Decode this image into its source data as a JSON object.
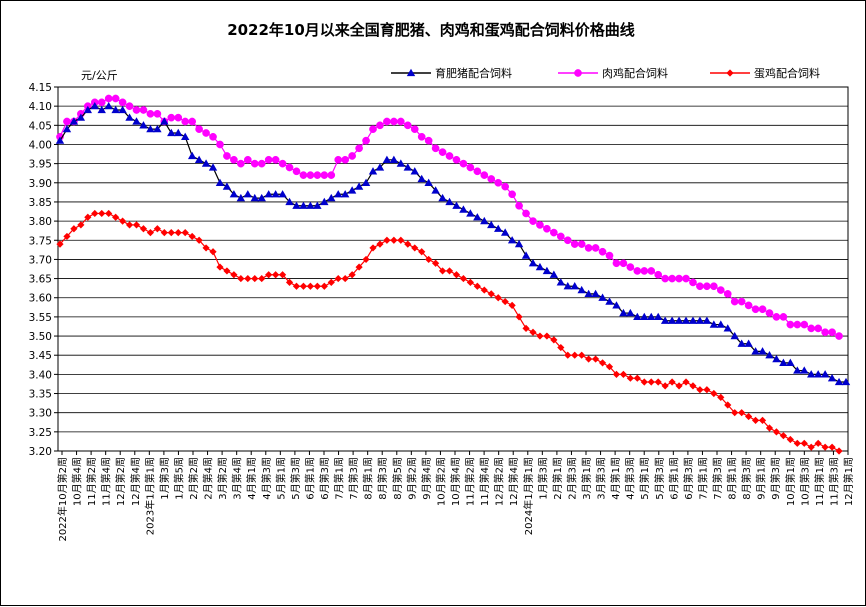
{
  "chart_data": {
    "type": "line",
    "title": "2022年10月以来全国育肥猪、肉鸡和蛋鸡配合饲料价格曲线",
    "ylabel": "元/公斤",
    "ylim": [
      3.2,
      4.15
    ],
    "yticks": [
      "3.20",
      "3.25",
      "3.30",
      "3.35",
      "3.40",
      "3.45",
      "3.50",
      "3.55",
      "3.60",
      "3.65",
      "3.70",
      "3.75",
      "3.80",
      "3.85",
      "3.90",
      "3.95",
      "4.00",
      "4.05",
      "4.10",
      "4.15"
    ],
    "grid": true,
    "legend_position": "top",
    "x_labels": [
      "2022年10月第2周",
      "10月第4周",
      "11月第2周",
      "11月第4周",
      "12月第2周",
      "12月第4周",
      "2023年1月第1周",
      "1月第3周",
      "1月第5周",
      "2月第2周",
      "2月第4周",
      "3月第2周",
      "3月第4周",
      "4月第1周",
      "4月第3周",
      "5月第1周",
      "5月第3周",
      "6月第1周",
      "6月第3周",
      "7月第1周",
      "7月第3周",
      "8月第1周",
      "8月第3周",
      "8月第5周",
      "9月第2周",
      "9月第4周",
      "10月第2周",
      "10月第4周",
      "11月第2周",
      "11月第4周",
      "12月第2周",
      "12月第4周",
      "2024年1月第1周",
      "1月第3周",
      "2月第1周",
      "2月第3周",
      "3月第1周",
      "3月第3周",
      "4月第1周",
      "4月第3周",
      "5月第1周",
      "5月第3周",
      "6月第1周",
      "6月第3周",
      "7月第1周",
      "7月第3周",
      "8月第1周",
      "8月第3周",
      "9月第1周",
      "9月第3周",
      "10月第1周",
      "10月第3周",
      "11月第1周",
      "11月第3周",
      "12月第1周"
    ],
    "series": [
      {
        "name": "育肥猪配合饲料",
        "color": "#0000cc",
        "marker": "triangle",
        "values": [
          4.01,
          4.04,
          4.06,
          4.07,
          4.09,
          4.1,
          4.09,
          4.1,
          4.09,
          4.09,
          4.07,
          4.06,
          4.05,
          4.04,
          4.04,
          4.06,
          4.03,
          4.03,
          4.02,
          3.97,
          3.96,
          3.95,
          3.94,
          3.9,
          3.89,
          3.87,
          3.86,
          3.87,
          3.86,
          3.86,
          3.87,
          3.87,
          3.87,
          3.85,
          3.84,
          3.84,
          3.84,
          3.84,
          3.85,
          3.86,
          3.87,
          3.87,
          3.88,
          3.89,
          3.9,
          3.93,
          3.94,
          3.96,
          3.96,
          3.95,
          3.94,
          3.93,
          3.91,
          3.9,
          3.88,
          3.86,
          3.85,
          3.84,
          3.83,
          3.82,
          3.81,
          3.8,
          3.79,
          3.78,
          3.77,
          3.75,
          3.74,
          3.71,
          3.69,
          3.68,
          3.67,
          3.66,
          3.64,
          3.63,
          3.63,
          3.62,
          3.61,
          3.61,
          3.6,
          3.59,
          3.58,
          3.56,
          3.56,
          3.55,
          3.55,
          3.55,
          3.55,
          3.54,
          3.54,
          3.54,
          3.54,
          3.54,
          3.54,
          3.54,
          3.53,
          3.53,
          3.52,
          3.5,
          3.48,
          3.48,
          3.46,
          3.46,
          3.45,
          3.44,
          3.43,
          3.43,
          3.41,
          3.41,
          3.4,
          3.4,
          3.4,
          3.39,
          3.38,
          3.38
        ]
      },
      {
        "name": "肉鸡配合饲料",
        "color": "#ff00ff",
        "marker": "circle",
        "values": [
          4.02,
          4.06,
          4.06,
          4.08,
          4.1,
          4.11,
          4.11,
          4.12,
          4.12,
          4.11,
          4.1,
          4.09,
          4.09,
          4.08,
          4.08,
          4.06,
          4.07,
          4.07,
          4.06,
          4.06,
          4.04,
          4.03,
          4.02,
          4.0,
          3.97,
          3.96,
          3.95,
          3.96,
          3.95,
          3.95,
          3.96,
          3.96,
          3.95,
          3.94,
          3.93,
          3.92,
          3.92,
          3.92,
          3.92,
          3.92,
          3.96,
          3.96,
          3.97,
          3.99,
          4.01,
          4.04,
          4.05,
          4.06,
          4.06,
          4.06,
          4.05,
          4.04,
          4.02,
          4.01,
          3.99,
          3.98,
          3.97,
          3.96,
          3.95,
          3.94,
          3.93,
          3.92,
          3.91,
          3.9,
          3.89,
          3.87,
          3.84,
          3.82,
          3.8,
          3.79,
          3.78,
          3.77,
          3.76,
          3.75,
          3.74,
          3.74,
          3.73,
          3.73,
          3.72,
          3.71,
          3.69,
          3.69,
          3.68,
          3.67,
          3.67,
          3.67,
          3.66,
          3.65,
          3.65,
          3.65,
          3.65,
          3.64,
          3.63,
          3.63,
          3.63,
          3.62,
          3.61,
          3.59,
          3.59,
          3.58,
          3.57,
          3.57,
          3.56,
          3.55,
          3.55,
          3.53,
          3.53,
          3.53,
          3.52,
          3.52,
          3.51,
          3.51,
          3.5
        ]
      },
      {
        "name": "蛋鸡配合饲料",
        "color": "#ff0000",
        "marker": "diamond",
        "values": [
          3.74,
          3.76,
          3.78,
          3.79,
          3.81,
          3.82,
          3.82,
          3.82,
          3.81,
          3.8,
          3.79,
          3.79,
          3.78,
          3.77,
          3.78,
          3.77,
          3.77,
          3.77,
          3.77,
          3.76,
          3.75,
          3.73,
          3.72,
          3.68,
          3.67,
          3.66,
          3.65,
          3.65,
          3.65,
          3.65,
          3.66,
          3.66,
          3.66,
          3.64,
          3.63,
          3.63,
          3.63,
          3.63,
          3.63,
          3.64,
          3.65,
          3.65,
          3.66,
          3.68,
          3.7,
          3.73,
          3.74,
          3.75,
          3.75,
          3.75,
          3.74,
          3.73,
          3.72,
          3.7,
          3.69,
          3.67,
          3.67,
          3.66,
          3.65,
          3.64,
          3.63,
          3.62,
          3.61,
          3.6,
          3.59,
          3.58,
          3.55,
          3.52,
          3.51,
          3.5,
          3.5,
          3.49,
          3.47,
          3.45,
          3.45,
          3.45,
          3.44,
          3.44,
          3.43,
          3.42,
          3.4,
          3.4,
          3.39,
          3.39,
          3.38,
          3.38,
          3.38,
          3.37,
          3.38,
          3.37,
          3.38,
          3.37,
          3.36,
          3.36,
          3.35,
          3.34,
          3.32,
          3.3,
          3.3,
          3.29,
          3.28,
          3.28,
          3.26,
          3.25,
          3.24,
          3.23,
          3.22,
          3.22,
          3.21,
          3.22,
          3.21,
          3.21,
          3.2
        ]
      }
    ]
  }
}
